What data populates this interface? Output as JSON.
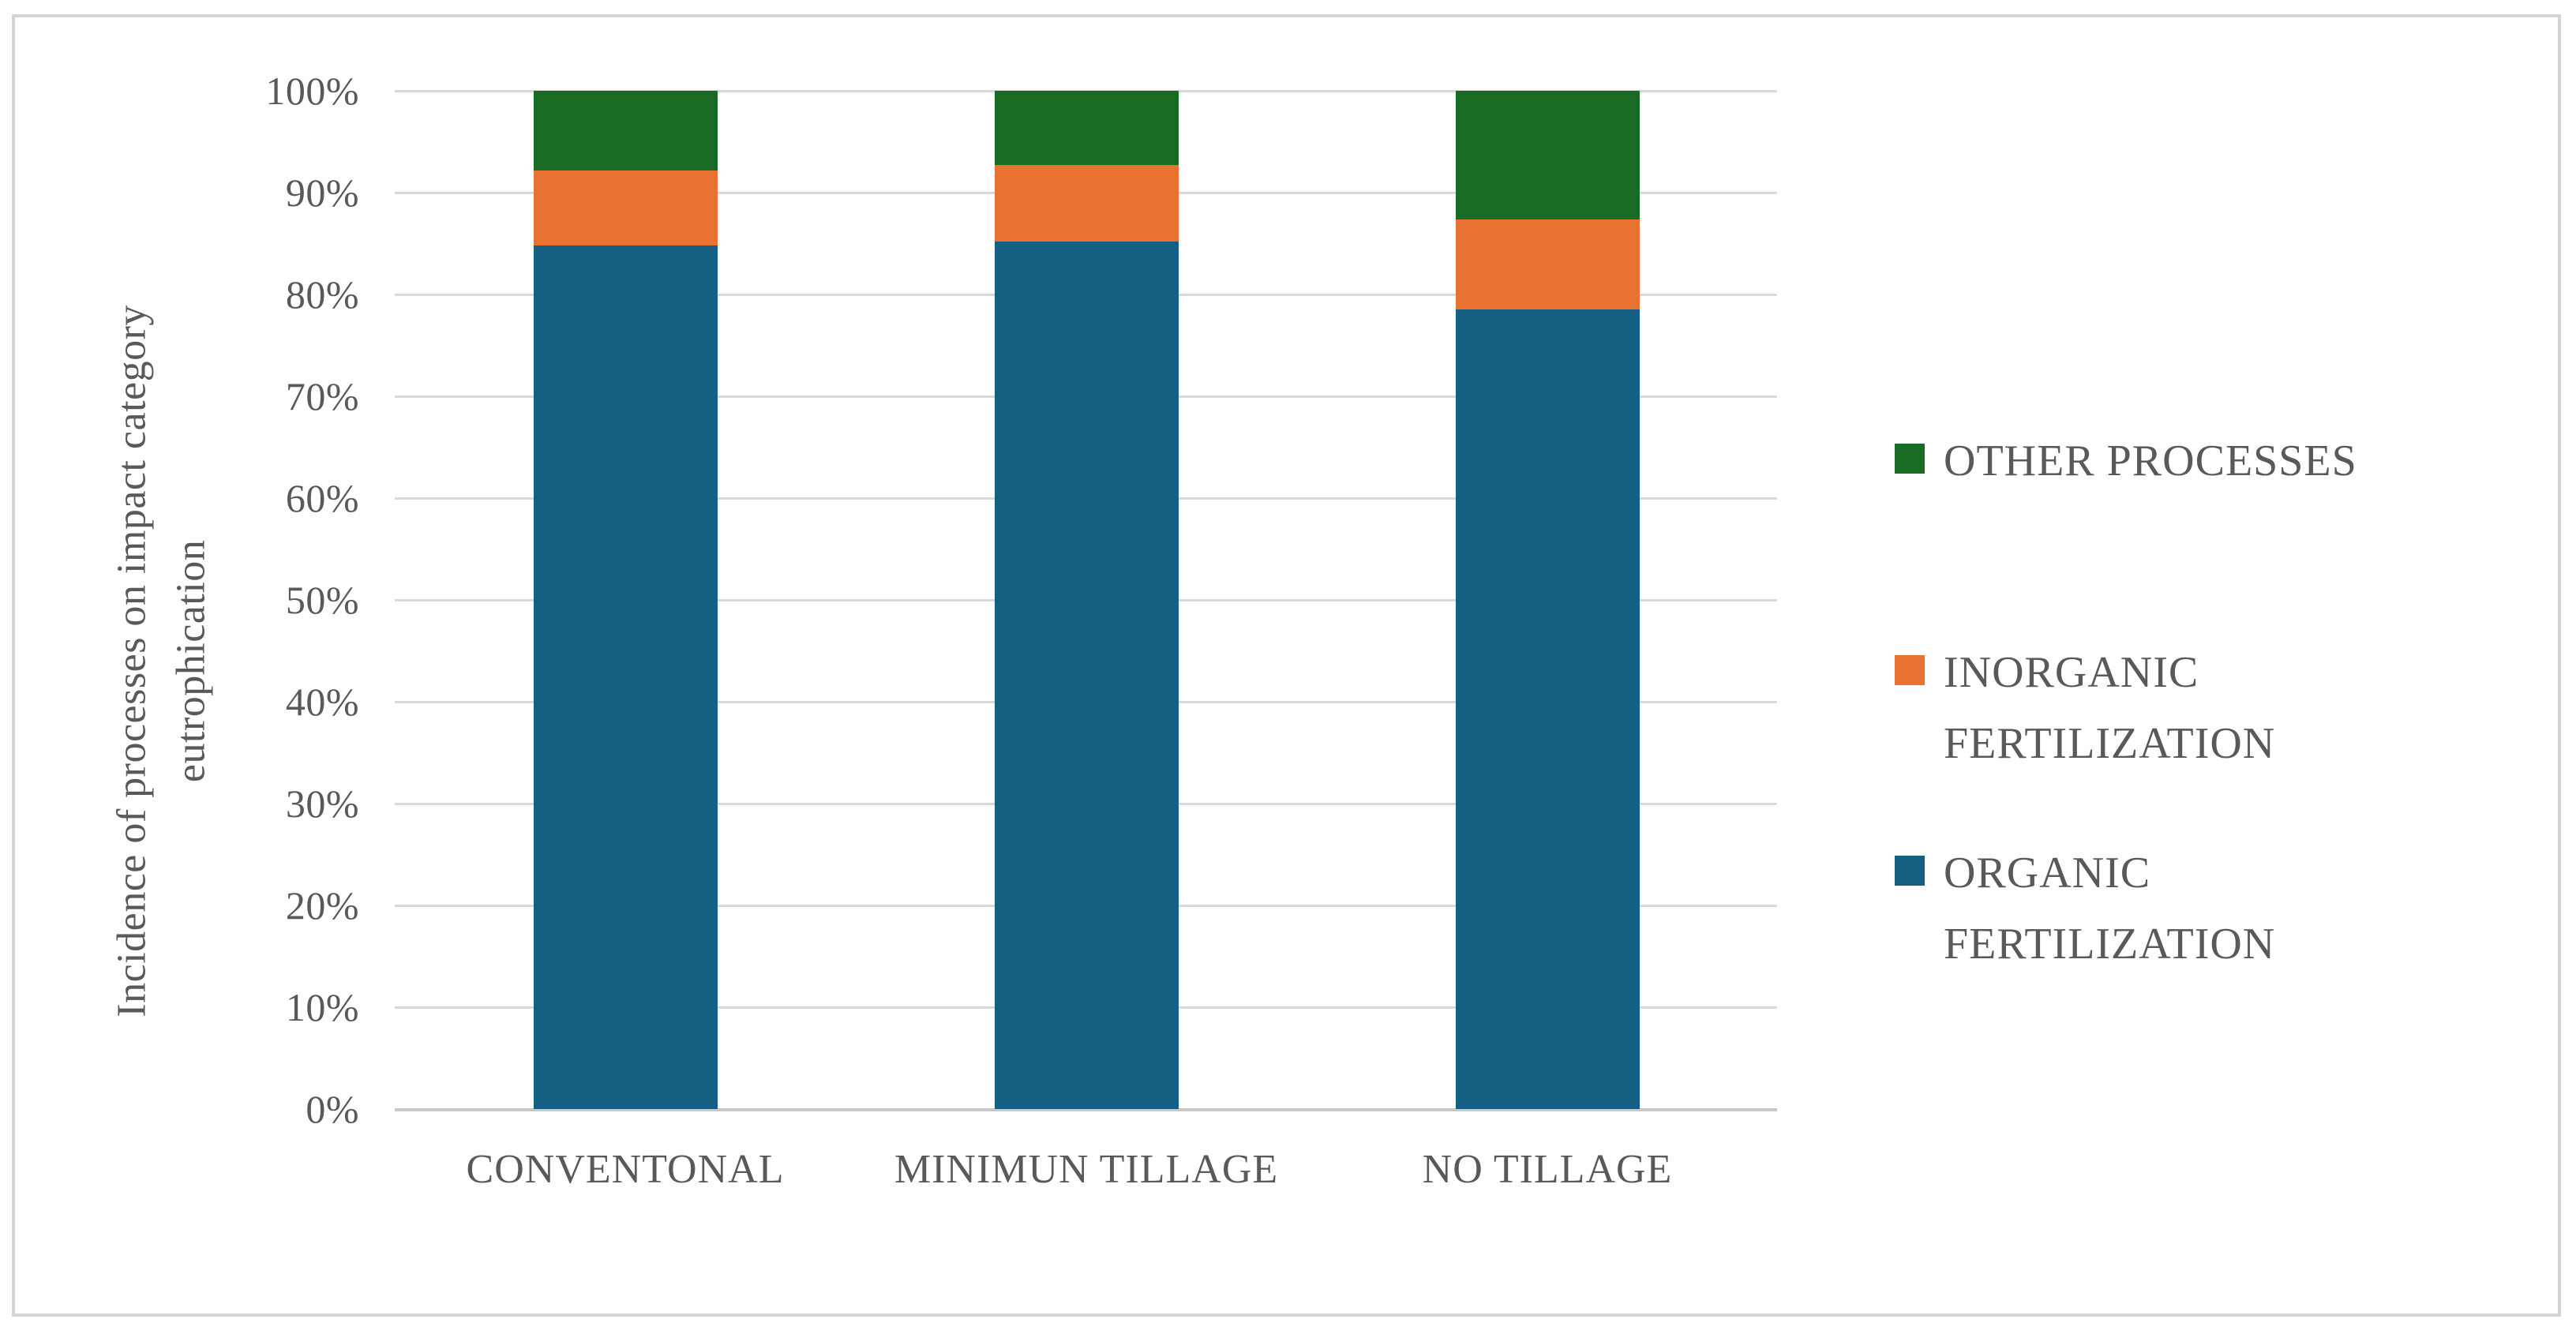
{
  "chart_data": {
    "type": "bar",
    "subtype": "stacked-100pct-column",
    "title": "",
    "categories": [
      "CONVENTONAL",
      "MINIMUN TILLAGE",
      "NO TILLAGE"
    ],
    "series": [
      {
        "name": "ORGANIC FERTILIZATION",
        "color": "#156082",
        "values": [
          84.8,
          85.2,
          78.5
        ]
      },
      {
        "name": "INORGANIC FERTILIZATION",
        "color": "#E97132",
        "values": [
          7.4,
          7.5,
          8.9
        ]
      },
      {
        "name": "OTHER PROCESSES",
        "color": "#196B24",
        "values": [
          7.8,
          7.3,
          12.6
        ]
      }
    ],
    "xlabel": "",
    "ylabel_lines": [
      "Incidence of processes on impact category",
      "eutrophication"
    ],
    "y_ticks": [
      "0%",
      "10%",
      "20%",
      "30%",
      "40%",
      "50%",
      "60%",
      "70%",
      "80%",
      "90%",
      "100%"
    ],
    "ylim": [
      0,
      100
    ],
    "grid": true,
    "legend_position": "right",
    "legend": [
      {
        "label_lines": [
          "OTHER PROCESSES"
        ],
        "color": "#196B24"
      },
      {
        "label_lines": [
          "INORGANIC",
          "FERTILIZATION"
        ],
        "color": "#E97132"
      },
      {
        "label_lines": [
          "ORGANIC",
          "FERTILIZATION"
        ],
        "color": "#156082"
      }
    ]
  },
  "style": {
    "text_color": "#595959",
    "gridline_color": "#d9d9d9",
    "baseline_color": "#c9c9c9",
    "frame_border_color": "#d4d4d4",
    "background_color": "#ffffff"
  }
}
